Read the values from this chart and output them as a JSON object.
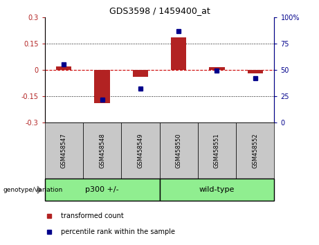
{
  "title": "GDS3598 / 1459400_at",
  "samples": [
    "GSM458547",
    "GSM458548",
    "GSM458549",
    "GSM458550",
    "GSM458551",
    "GSM458552"
  ],
  "transformed_count": [
    0.02,
    -0.19,
    -0.04,
    0.185,
    0.015,
    -0.02
  ],
  "percentile_rank": [
    55,
    22,
    32,
    87,
    49,
    42
  ],
  "ylim_left": [
    -0.3,
    0.3
  ],
  "ylim_right": [
    0,
    100
  ],
  "yticks_left": [
    -0.3,
    -0.15,
    0,
    0.15,
    0.3
  ],
  "yticks_right": [
    0,
    25,
    50,
    75,
    100
  ],
  "ytick_left_labels": [
    "-0.3",
    "-0.15",
    "0",
    "0.15",
    "0.3"
  ],
  "ytick_right_labels": [
    "0",
    "25",
    "50",
    "75",
    "100%"
  ],
  "dotted_lines": [
    -0.15,
    0.15
  ],
  "bar_color": "#B22222",
  "dot_color": "#00008B",
  "zero_line_color": "#CC0000",
  "group1_label": "p300 +/-",
  "group2_label": "wild-type",
  "group1_indices": [
    0,
    1,
    2
  ],
  "group2_indices": [
    3,
    4,
    5
  ],
  "group_color": "#90EE90",
  "group_label_text": "genotype/variation",
  "legend_bar_label": "transformed count",
  "legend_dot_label": "percentile rank within the sample",
  "tick_bg_color": "#C8C8C8",
  "bar_width": 0.4,
  "fig_width": 4.61,
  "fig_height": 3.54,
  "dpi": 100
}
